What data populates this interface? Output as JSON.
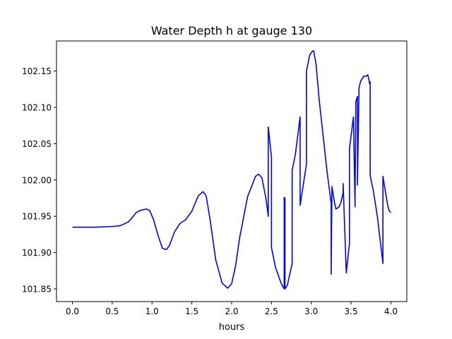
{
  "chart_data": {
    "type": "line",
    "title": "Water Depth h at gauge 130",
    "xlabel": "hours",
    "ylabel": "",
    "xlim": [
      -0.2,
      4.2
    ],
    "ylim": [
      101.8325,
      102.1915
    ],
    "xticks": [
      0.0,
      0.5,
      1.0,
      1.5,
      2.0,
      2.5,
      3.0,
      3.5,
      4.0
    ],
    "xtick_labels": [
      "0.0",
      "0.5",
      "1.0",
      "1.5",
      "2.0",
      "2.5",
      "3.0",
      "3.5",
      "4.0"
    ],
    "yticks": [
      101.85,
      101.9,
      101.95,
      102.0,
      102.05,
      102.1,
      102.15
    ],
    "ytick_labels": [
      "101.85",
      "101.90",
      "101.95",
      "102.00",
      "102.05",
      "102.10",
      "102.15"
    ],
    "grid": false,
    "legend": "none",
    "series": [
      {
        "name": "",
        "color": "#0000ff",
        "x": [
          0.0,
          0.3,
          0.5,
          0.6,
          0.7,
          0.75,
          0.8,
          0.85,
          0.93,
          0.97,
          1.02,
          1.08,
          1.13,
          1.18,
          1.22,
          1.28,
          1.35,
          1.42,
          1.5,
          1.58,
          1.64,
          1.68,
          1.73,
          1.8,
          1.88,
          1.95,
          2.0,
          2.05,
          2.1,
          2.2,
          2.3,
          2.34,
          2.38,
          2.43,
          2.46,
          2.46,
          2.5,
          2.5,
          2.55,
          2.62,
          2.66,
          2.66,
          2.67,
          2.67,
          2.7,
          2.76,
          2.76,
          2.8,
          2.86,
          2.86,
          2.94,
          2.94,
          2.98,
          3.01,
          3.03,
          3.06,
          3.1,
          3.15,
          3.2,
          3.25,
          3.25,
          3.26,
          3.29,
          3.31,
          3.35,
          3.37,
          3.4,
          3.4,
          3.44,
          3.48,
          3.48,
          3.53,
          3.55,
          3.55,
          3.56,
          3.56,
          3.58,
          3.58,
          3.6,
          3.62,
          3.66,
          3.69,
          3.71,
          3.73,
          3.73,
          3.74,
          3.74,
          3.78,
          3.83,
          3.9,
          3.9,
          3.93,
          3.96,
          3.98,
          4.0
        ],
        "values": [
          101.935,
          101.935,
          101.936,
          101.937,
          101.942,
          101.948,
          101.955,
          101.958,
          101.96,
          101.958,
          101.945,
          101.922,
          101.906,
          101.904,
          101.91,
          101.928,
          101.94,
          101.945,
          101.957,
          101.978,
          101.984,
          101.978,
          101.945,
          101.89,
          101.858,
          101.851,
          101.857,
          101.882,
          101.92,
          101.977,
          102.005,
          102.008,
          102.003,
          101.975,
          101.95,
          102.073,
          102.032,
          101.907,
          101.88,
          101.858,
          101.85,
          101.976,
          101.975,
          101.85,
          101.855,
          101.885,
          102.013,
          102.035,
          102.087,
          101.965,
          102.022,
          102.15,
          102.172,
          102.177,
          102.178,
          102.16,
          102.11,
          102.06,
          102.01,
          101.968,
          101.87,
          101.991,
          101.97,
          101.96,
          101.963,
          101.968,
          101.982,
          101.995,
          101.872,
          101.913,
          102.043,
          102.087,
          101.963,
          101.975,
          102.103,
          102.108,
          102.115,
          101.993,
          102.127,
          102.136,
          102.143,
          102.143,
          102.145,
          102.135,
          102.133,
          102.135,
          102.006,
          101.985,
          101.95,
          101.885,
          102.005,
          101.985,
          101.965,
          101.957,
          101.955
        ]
      }
    ]
  }
}
